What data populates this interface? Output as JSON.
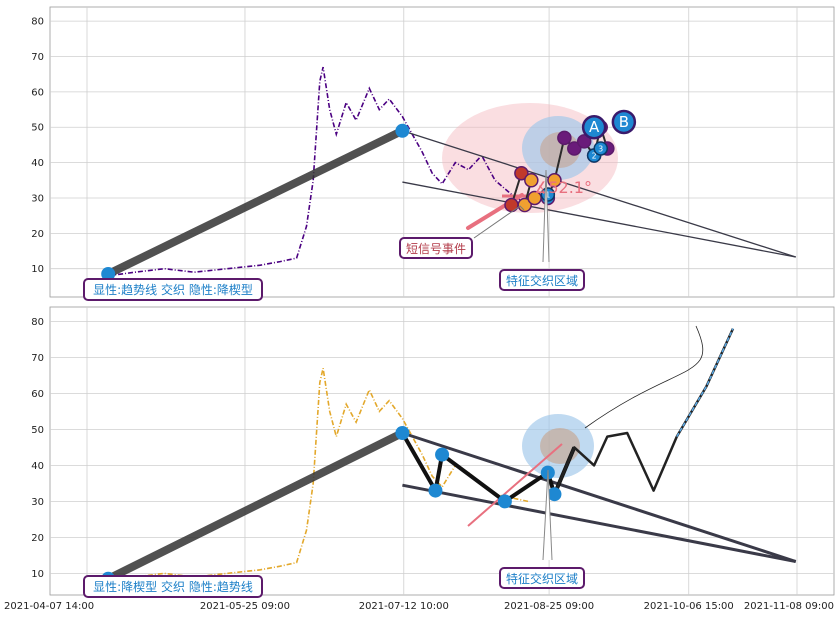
{
  "chart_data": {
    "type": "line",
    "x_axis": {
      "range": [
        "2021-04-07 14:00",
        "2021-11-08 09:00"
      ],
      "tick_labels": [
        "2021-04-07 14:00",
        "2021-05-25 09:00",
        "2021-07-12 10:00",
        "2021-08-25 09:00",
        "2021-10-06 15:00",
        "2021-11-08 09:00"
      ]
    },
    "panels": [
      {
        "id": "top",
        "ylim": [
          2,
          84
        ],
        "yticks": [
          "10",
          "20",
          "30",
          "40",
          "50",
          "60",
          "70",
          "80"
        ],
        "grid": true,
        "series_color": "#4b0082",
        "price": [
          [
            "2021-04-14",
            8
          ],
          [
            "2021-04-22",
            9
          ],
          [
            "2021-05-01",
            10
          ],
          [
            "2021-05-10",
            9
          ],
          [
            "2021-05-20",
            10
          ],
          [
            "2021-05-30",
            11
          ],
          [
            "2021-06-05",
            12
          ],
          [
            "2021-06-10",
            13
          ],
          [
            "2021-06-13",
            22
          ],
          [
            "2021-06-15",
            35
          ],
          [
            "2021-06-17",
            63
          ],
          [
            "2021-06-18",
            67
          ],
          [
            "2021-06-20",
            55
          ],
          [
            "2021-06-22",
            48
          ],
          [
            "2021-06-25",
            57
          ],
          [
            "2021-06-28",
            52
          ],
          [
            "2021-07-02",
            61
          ],
          [
            "2021-07-05",
            55
          ],
          [
            "2021-07-08",
            58
          ],
          [
            "2021-07-12",
            53
          ],
          [
            "2021-07-15",
            48
          ],
          [
            "2021-07-18",
            43
          ],
          [
            "2021-07-21",
            37
          ],
          [
            "2021-07-24",
            34
          ],
          [
            "2021-07-28",
            40
          ],
          [
            "2021-08-01",
            38
          ],
          [
            "2021-08-05",
            42
          ],
          [
            "2021-08-09",
            35
          ],
          [
            "2021-08-14",
            31
          ],
          [
            "2021-08-19",
            28
          ]
        ],
        "trend_line": {
          "from": [
            "2021-04-14",
            8.5
          ],
          "to": [
            "2021-07-12",
            49
          ]
        },
        "pattern_lines": [
          {
            "from": [
              "2021-07-12",
              49
            ],
            "to": [
              "2021-11-08",
              13.3
            ]
          },
          {
            "from": [
              "2021-07-12",
              34.5
            ],
            "to": [
              "2021-11-08",
              13.3
            ]
          }
        ],
        "markers": [
          [
            "2021-04-14",
            8.5
          ],
          [
            "2021-07-12",
            49
          ]
        ],
        "signal_points": [
          [
            "2021-08-14",
            28
          ],
          [
            "2021-08-17",
            37
          ],
          [
            "2021-08-20",
            35
          ],
          [
            "2021-08-18",
            28
          ],
          [
            "2021-08-21",
            30
          ],
          [
            "2021-08-25",
            30
          ],
          [
            "2021-08-27",
            35
          ],
          [
            "2021-08-30",
            47
          ],
          [
            "2021-09-02",
            44
          ],
          [
            "2021-09-05",
            46
          ],
          [
            "2021-09-08",
            42
          ],
          [
            "2021-09-10",
            50
          ],
          [
            "2021-09-12",
            44
          ]
        ],
        "numbered_points": [
          [
            "2021-08-25",
            31,
            "1"
          ],
          [
            "2021-09-08",
            42,
            "2"
          ],
          [
            "2021-09-10",
            44,
            "3"
          ]
        ],
        "wave_labels": [
          [
            "2021-09-08",
            50,
            "A"
          ],
          [
            "2021-09-17",
            51.5,
            "B"
          ]
        ],
        "angle_label": "∡52.1°",
        "annotations": {
          "legend": "显性:趋势线 交织 隐性:降楔型",
          "short_signal": "短信号事件",
          "feature_zone": "特征交织区域"
        }
      },
      {
        "id": "bottom",
        "ylim": [
          4,
          84
        ],
        "yticks": [
          "10",
          "20",
          "30",
          "40",
          "50",
          "60",
          "70",
          "80"
        ],
        "grid": true,
        "series_color": "#e3a82b",
        "price": [
          [
            "2021-04-14",
            8
          ],
          [
            "2021-04-22",
            9
          ],
          [
            "2021-05-01",
            10
          ],
          [
            "2021-05-10",
            9
          ],
          [
            "2021-05-20",
            10
          ],
          [
            "2021-05-30",
            11
          ],
          [
            "2021-06-05",
            12
          ],
          [
            "2021-06-10",
            13
          ],
          [
            "2021-06-13",
            22
          ],
          [
            "2021-06-15",
            35
          ],
          [
            "2021-06-17",
            63
          ],
          [
            "2021-06-18",
            67
          ],
          [
            "2021-06-20",
            55
          ],
          [
            "2021-06-22",
            48
          ],
          [
            "2021-06-25",
            57
          ],
          [
            "2021-06-28",
            52
          ],
          [
            "2021-07-02",
            61
          ],
          [
            "2021-07-05",
            55
          ],
          [
            "2021-07-08",
            58
          ],
          [
            "2021-07-12",
            53
          ],
          [
            "2021-07-15",
            48
          ],
          [
            "2021-07-18",
            43
          ],
          [
            "2021-07-21",
            37
          ],
          [
            "2021-07-24",
            34
          ],
          [
            "2021-07-28",
            40
          ],
          [
            "2021-08-01",
            38
          ],
          [
            "2021-08-05",
            35
          ],
          [
            "2021-08-09",
            32
          ],
          [
            "2021-08-14",
            31
          ],
          [
            "2021-08-19",
            30
          ]
        ],
        "trend_line": {
          "from": [
            "2021-04-14",
            8.5
          ],
          "to": [
            "2021-07-12",
            49
          ]
        },
        "pattern_lines": [
          {
            "from": [
              "2021-07-12",
              49
            ],
            "to": [
              "2021-11-08",
              13.3
            ]
          },
          {
            "from": [
              "2021-07-12",
              34.5
            ],
            "to": [
              "2021-11-08",
              13.3
            ]
          }
        ],
        "zigzag": [
          [
            "2021-07-12",
            49
          ],
          [
            "2021-07-22",
            33
          ],
          [
            "2021-07-24",
            43
          ],
          [
            "2021-08-12",
            30
          ],
          [
            "2021-08-25",
            38
          ],
          [
            "2021-08-27",
            32
          ],
          [
            "2021-09-02",
            45
          ]
        ],
        "markers": [
          [
            "2021-04-14",
            8.5
          ],
          [
            "2021-07-12",
            49
          ],
          [
            "2021-07-22",
            33
          ],
          [
            "2021-07-24",
            43
          ],
          [
            "2021-08-12",
            30
          ],
          [
            "2021-08-25",
            38
          ],
          [
            "2021-08-27",
            32
          ]
        ],
        "projection": [
          [
            "2021-08-27",
            32
          ],
          [
            "2021-09-02",
            45
          ],
          [
            "2021-09-08",
            40
          ],
          [
            "2021-09-12",
            48
          ],
          [
            "2021-09-18",
            49
          ],
          [
            "2021-09-26",
            33
          ],
          [
            "2021-10-03",
            48
          ],
          [
            "2021-10-12",
            62
          ],
          [
            "2021-10-20",
            78
          ]
        ],
        "annotations": {
          "legend": "显性:降楔型 交织 隐性:趋势线",
          "feature_zone": "特征交织区域"
        }
      }
    ]
  }
}
